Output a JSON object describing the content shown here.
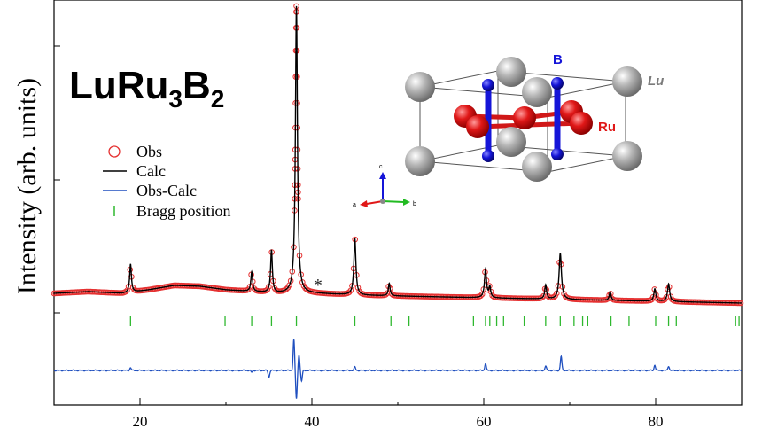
{
  "chart_data": {
    "type": "scatter",
    "title": "",
    "compound": {
      "base": "LuRu",
      "sub1": "3",
      "mid": "B",
      "sub2": "2"
    },
    "ylabel": "Intensity (arb. units)",
    "xlabel": "",
    "xlim": [
      10,
      90
    ],
    "x_ticks": [
      20,
      40,
      60,
      80
    ],
    "y_ticks_visible": false,
    "legend": {
      "placement": "left",
      "entries": [
        {
          "label": "Obs",
          "marker": "open-circle",
          "color": "#e53030"
        },
        {
          "label": "Calc",
          "marker": "line",
          "color": "#000000"
        },
        {
          "label": "Obs-Calc",
          "marker": "line",
          "color": "#1f4fbf"
        },
        {
          "label": "Bragg position",
          "marker": "vbar",
          "color": "#2fb82f"
        }
      ]
    },
    "annotation": {
      "text": "*",
      "x": 40.6
    },
    "baseline": 0.04,
    "background": [
      [
        10,
        0.11
      ],
      [
        14,
        0.12
      ],
      [
        18,
        0.11
      ],
      [
        21,
        0.13
      ],
      [
        24,
        0.155
      ],
      [
        27,
        0.15
      ],
      [
        30,
        0.13
      ],
      [
        33,
        0.12
      ],
      [
        36,
        0.11
      ],
      [
        40,
        0.11
      ],
      [
        45,
        0.1
      ],
      [
        50,
        0.095
      ],
      [
        55,
        0.09
      ],
      [
        60,
        0.085
      ],
      [
        65,
        0.08
      ],
      [
        70,
        0.075
      ],
      [
        75,
        0.07
      ],
      [
        80,
        0.065
      ],
      [
        85,
        0.06
      ],
      [
        90,
        0.055
      ]
    ],
    "peaks": [
      {
        "x": 18.9,
        "h": 0.16,
        "w": 0.12
      },
      {
        "x": 33.0,
        "h": 0.11,
        "w": 0.12
      },
      {
        "x": 35.3,
        "h": 0.24,
        "w": 0.12
      },
      {
        "x": 38.2,
        "h": 1.62,
        "w": 0.14
      },
      {
        "x": 45.0,
        "h": 0.32,
        "w": 0.14
      },
      {
        "x": 49.0,
        "h": 0.07,
        "w": 0.12
      },
      {
        "x": 60.2,
        "h": 0.16,
        "w": 0.14
      },
      {
        "x": 60.7,
        "h": 0.06,
        "w": 0.12
      },
      {
        "x": 67.2,
        "h": 0.08,
        "w": 0.12
      },
      {
        "x": 68.9,
        "h": 0.26,
        "w": 0.16
      },
      {
        "x": 74.7,
        "h": 0.05,
        "w": 0.12
      },
      {
        "x": 79.9,
        "h": 0.07,
        "w": 0.14
      },
      {
        "x": 81.5,
        "h": 0.1,
        "w": 0.15
      }
    ],
    "bragg_positions": [
      18.9,
      29.9,
      33.0,
      35.3,
      38.2,
      45.0,
      49.2,
      51.3,
      58.8,
      60.2,
      60.7,
      61.5,
      62.3,
      64.7,
      67.2,
      68.9,
      70.5,
      71.5,
      72.1,
      74.8,
      76.9,
      80.0,
      81.5,
      82.4,
      89.3,
      89.7
    ],
    "difference_spikes": [
      {
        "x": 18.9,
        "v": 0.03
      },
      {
        "x": 33.0,
        "v": -0.02
      },
      {
        "x": 35.0,
        "v": -0.08
      },
      {
        "x": 37.9,
        "v": 0.35
      },
      {
        "x": 38.2,
        "v": -0.32
      },
      {
        "x": 38.5,
        "v": 0.18
      },
      {
        "x": 38.8,
        "v": -0.12
      },
      {
        "x": 45.0,
        "v": 0.04
      },
      {
        "x": 60.2,
        "v": 0.08
      },
      {
        "x": 67.2,
        "v": 0.05
      },
      {
        "x": 69.0,
        "v": 0.16
      },
      {
        "x": 79.9,
        "v": 0.06
      },
      {
        "x": 81.5,
        "v": 0.05
      }
    ]
  },
  "inset": {
    "atoms": {
      "B": "B",
      "Lu": "Lu",
      "Ru": "Ru"
    },
    "axes": {
      "a": "a",
      "b": "b",
      "c": "c"
    },
    "colors": {
      "Lu": "#a8a8a8",
      "Ru": "#e01818",
      "B": "#1515d8",
      "cell": "#444444"
    }
  }
}
